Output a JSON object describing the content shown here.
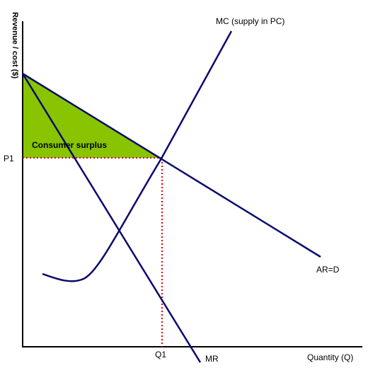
{
  "diagram": {
    "y_axis_label": "Revenue / cost ($)",
    "x_axis_label": "Quantity (Q)",
    "price_label": "P1",
    "quantity_label": "Q1",
    "mc_label": "MC (supply in PC)",
    "ar_label": "AR=D",
    "mr_label": "MR",
    "area_label": "Consumer surplus",
    "colors": {
      "curve": "#0a0a6e",
      "axis": "#000000",
      "dotted": "#e00000",
      "surplus_fill": "#88c400",
      "text": "#000000"
    }
  }
}
